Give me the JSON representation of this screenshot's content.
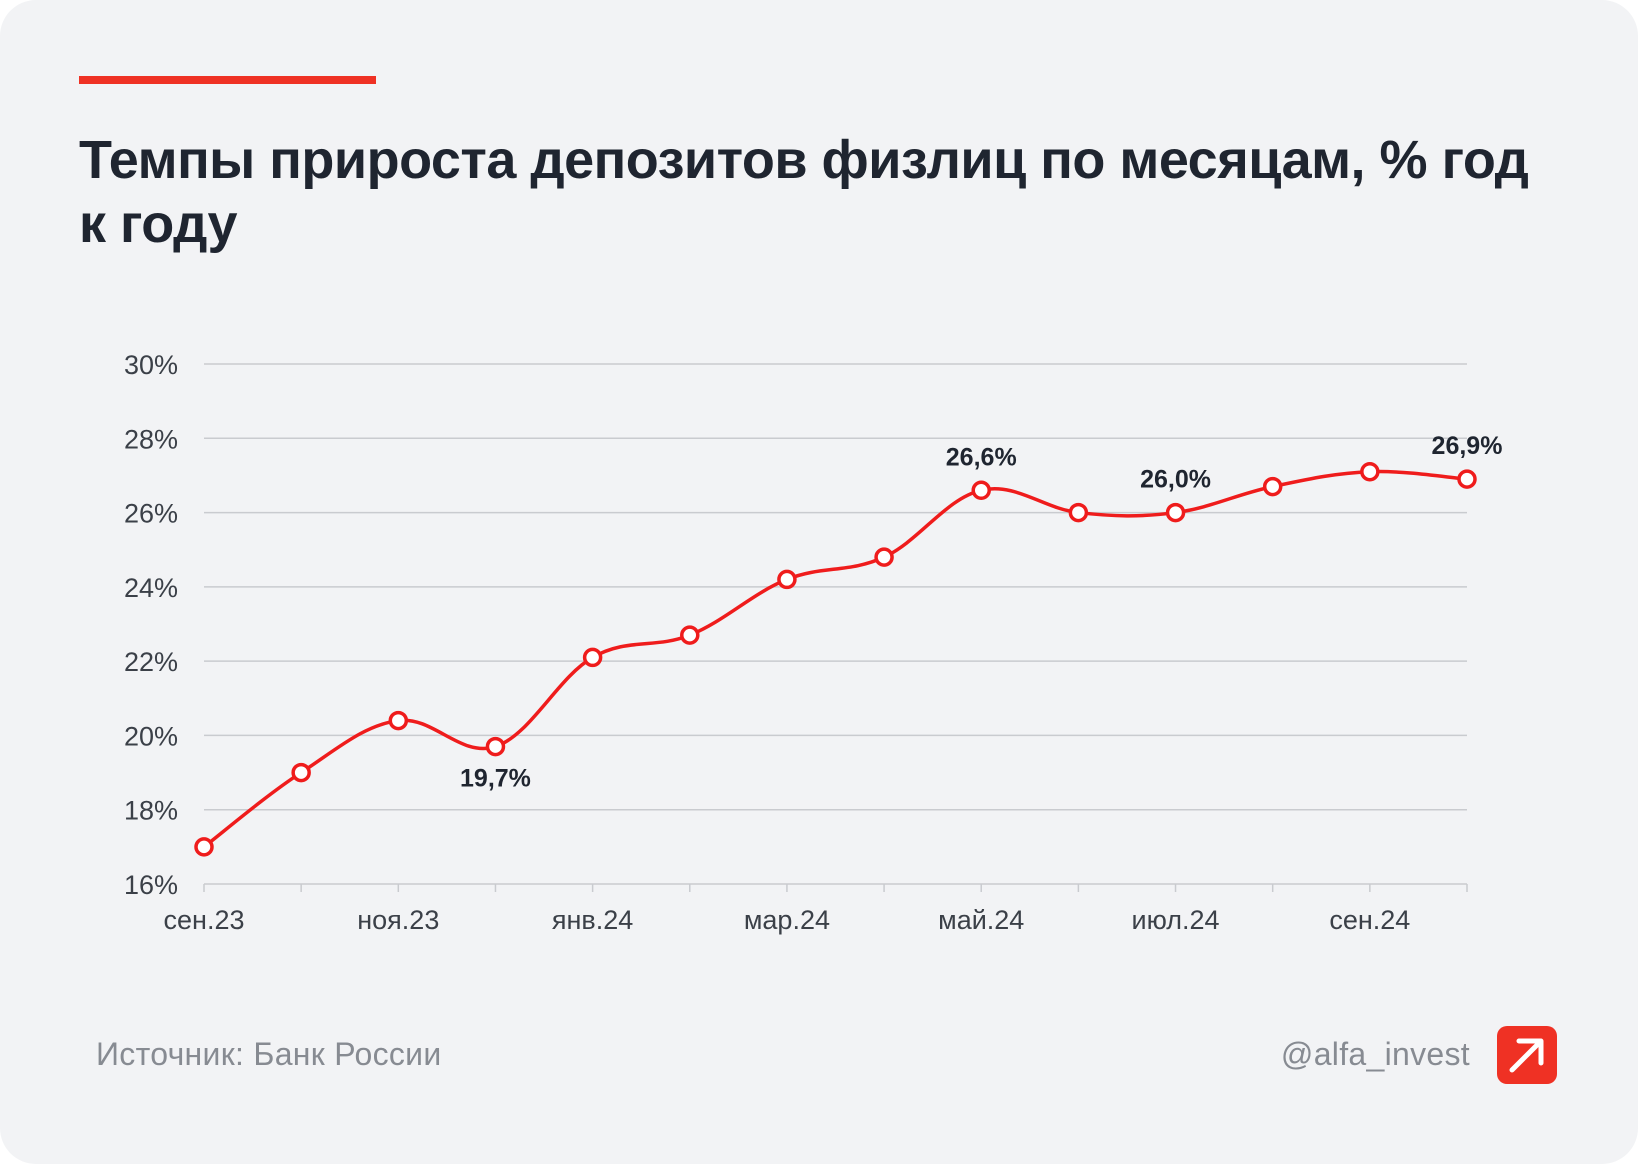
{
  "header": {
    "title": "Темпы прироста депозитов физлиц по месяцам, % год к году"
  },
  "footer": {
    "source": "Источник: Банк России",
    "handle": "@alfa_invest",
    "logo_icon": "alfa-arrow-logo-icon"
  },
  "colors": {
    "accent": "#ef3124",
    "line": "#ef1c1c",
    "grid": "#c9cbcf",
    "background": "#f2f3f5"
  },
  "chart_data": {
    "type": "line",
    "title": "Темпы прироста депозитов физлиц по месяцам, % год к году",
    "xlabel": "",
    "ylabel": "",
    "ylim": [
      16,
      30
    ],
    "yticks": [
      16,
      18,
      20,
      22,
      24,
      26,
      28,
      30
    ],
    "ytick_labels": [
      "16%",
      "18%",
      "20%",
      "22%",
      "24%",
      "26%",
      "28%",
      "30%"
    ],
    "grid": true,
    "x_tick_labels": [
      {
        "index": 0,
        "label": "сен.23"
      },
      {
        "index": 2,
        "label": "ноя.23"
      },
      {
        "index": 4,
        "label": "янв.24"
      },
      {
        "index": 6,
        "label": "мар.24"
      },
      {
        "index": 8,
        "label": "май.24"
      },
      {
        "index": 10,
        "label": "июл.24"
      },
      {
        "index": 12,
        "label": "сен.24"
      }
    ],
    "series": [
      {
        "name": "Темпы прироста депозитов физлиц",
        "values": [
          17.0,
          19.0,
          20.4,
          19.7,
          22.1,
          22.7,
          24.2,
          24.8,
          26.6,
          26.0,
          26.0,
          26.7,
          27.1,
          26.9
        ]
      }
    ],
    "data_labels": [
      {
        "index": 3,
        "text": "19,7%",
        "position": "below"
      },
      {
        "index": 8,
        "text": "26,6%",
        "position": "above"
      },
      {
        "index": 10,
        "text": "26,0%",
        "position": "above"
      },
      {
        "index": 13,
        "text": "26,9%",
        "position": "above"
      }
    ]
  }
}
